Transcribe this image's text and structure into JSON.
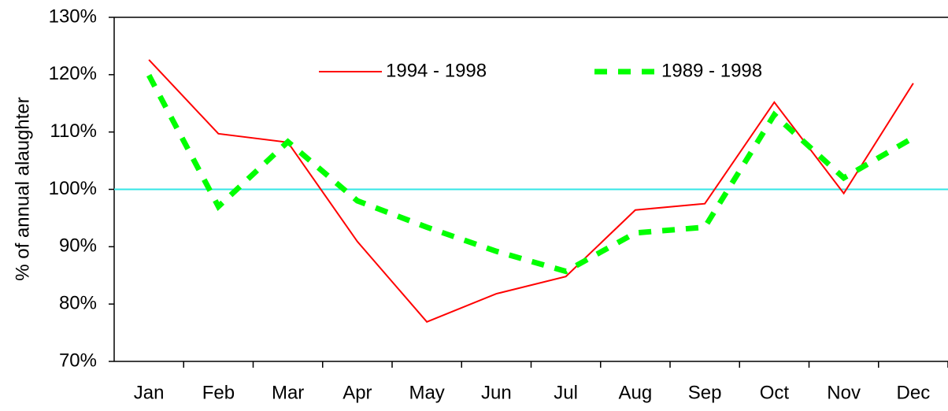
{
  "chart_data": {
    "type": "line",
    "y_label": "% of annual alaughter",
    "categories": [
      "Jan",
      "Feb",
      "Mar",
      "Apr",
      "May",
      "Jun",
      "Jul",
      "Aug",
      "Sep",
      "Oct",
      "Nov",
      "Dec"
    ],
    "series": [
      {
        "name": "1994 - 1998",
        "color": "#ff0000",
        "dashed": false,
        "values": [
          122.6,
          109.7,
          108.2,
          90.9,
          76.9,
          81.8,
          84.8,
          96.4,
          97.5,
          115.2,
          99.3,
          118.5
        ]
      },
      {
        "name": "1989 - 1998",
        "color": "#00ff00",
        "dashed": true,
        "values": [
          119.9,
          97,
          108.3,
          98,
          93.4,
          89.2,
          85.7,
          92.4,
          93.4,
          113,
          102,
          109
        ]
      }
    ],
    "reference_line": 100,
    "reference_color": "#33e6e6",
    "ylim": [
      70,
      130
    ],
    "yticks": [
      {
        "value": 70,
        "label": "70%"
      },
      {
        "value": 80,
        "label": "80%"
      },
      {
        "value": 90,
        "label": "90%"
      },
      {
        "value": 100,
        "label": "100%"
      },
      {
        "value": 110,
        "label": "110%"
      },
      {
        "value": 120,
        "label": "120%"
      },
      {
        "value": 130,
        "label": "130%"
      }
    ],
    "legend": "top"
  }
}
